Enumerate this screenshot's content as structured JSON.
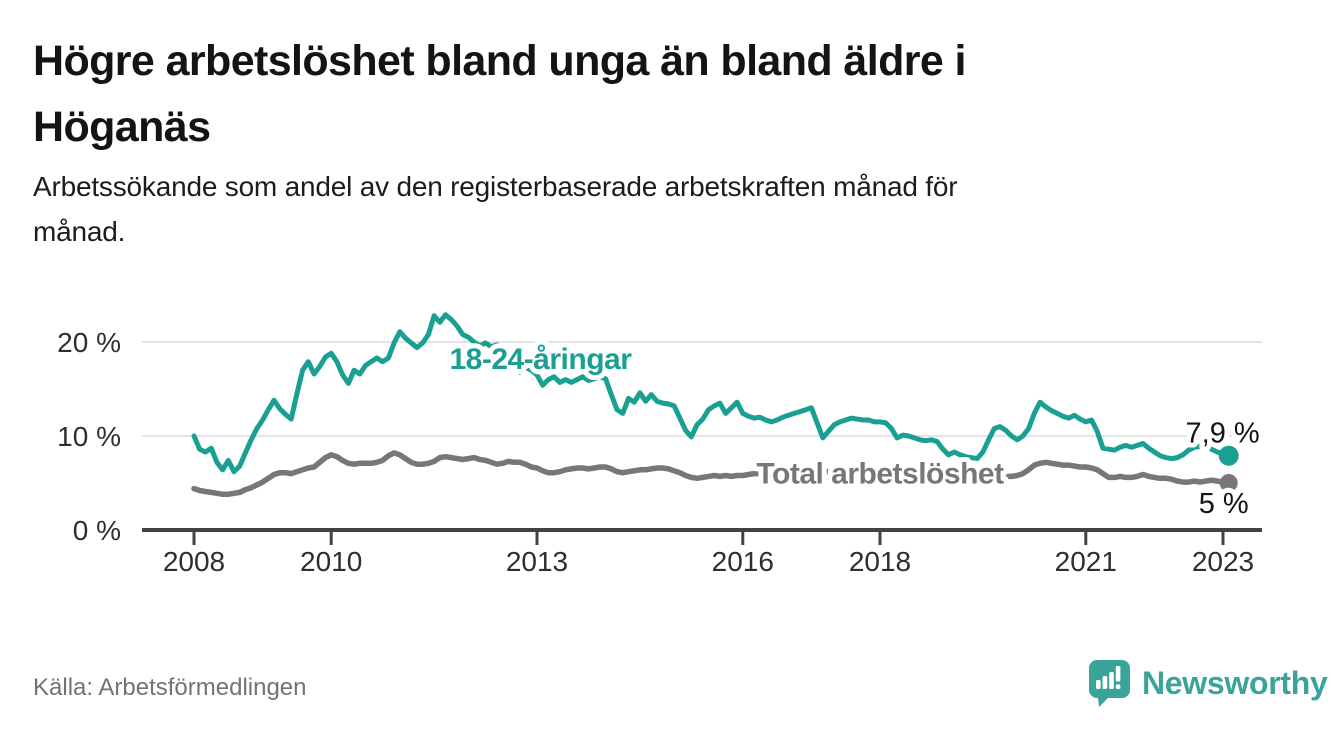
{
  "header": {
    "title": "Högre arbetslöshet bland unga än bland äldre i Höganäs",
    "title_lines": [
      "Högre arbetslöshet bland unga än bland äldre i",
      "Höganäs"
    ],
    "subtitle": "Arbetssökande som andel av den registerbaserade arbetskraften månad för månad.",
    "subtitle_lines": [
      "Arbetssökande som andel av den registerbaserade arbetskraften månad för",
      "månad."
    ]
  },
  "footer": {
    "source": "Källa: Arbetsförmedlingen",
    "brand": "Newsworthy"
  },
  "colors": {
    "youth_line": "#1aa093",
    "total_line": "#77777b",
    "axis": "#424242",
    "gridline": "#e4e4e4",
    "brand_teal": "#3aa49b"
  },
  "chart_data": {
    "type": "line",
    "title": "Högre arbetslöshet bland unga än bland äldre i Höganäs",
    "subtitle": "Arbetssökande som andel av den registerbaserade arbetskraften månad för månad.",
    "unit": "%",
    "frequency": "monthly",
    "start": "2008-01",
    "end": "2023-02",
    "grid": true,
    "ylim": [
      0,
      24.5
    ],
    "y_ticks": [
      {
        "value": 0,
        "label": "0 %"
      },
      {
        "value": 10,
        "label": "10 %"
      },
      {
        "value": 20,
        "label": "20 %"
      }
    ],
    "x_ticks": [
      {
        "year": 2008,
        "label": "2008"
      },
      {
        "year": 2010,
        "label": "2010"
      },
      {
        "year": 2013,
        "label": "2013"
      },
      {
        "year": 2016,
        "label": "2016"
      },
      {
        "year": 2018,
        "label": "2018"
      },
      {
        "year": 2021,
        "label": "2021"
      },
      {
        "year": 2023,
        "label": "2023"
      }
    ],
    "series": [
      {
        "name": "Total arbetslöshet",
        "color": "#77777b",
        "line_width": 5.5,
        "end_label": "5 %",
        "end_value": 5.0,
        "label_anchor": {
          "year": 2018.0,
          "value": 6.1
        },
        "values": [
          4.4,
          4.2,
          4.1,
          4.0,
          3.9,
          3.8,
          3.8,
          3.9,
          4.0,
          4.3,
          4.5,
          4.8,
          5.1,
          5.5,
          5.9,
          6.1,
          6.1,
          6.0,
          6.2,
          6.4,
          6.6,
          6.7,
          7.2,
          7.7,
          8.0,
          7.8,
          7.4,
          7.1,
          7.0,
          7.1,
          7.1,
          7.1,
          7.2,
          7.4,
          7.9,
          8.2,
          8.0,
          7.6,
          7.2,
          7.0,
          7.0,
          7.1,
          7.3,
          7.7,
          7.8,
          7.7,
          7.6,
          7.5,
          7.6,
          7.7,
          7.5,
          7.4,
          7.2,
          7.0,
          7.1,
          7.3,
          7.2,
          7.2,
          7.0,
          6.7,
          6.6,
          6.3,
          6.1,
          6.1,
          6.2,
          6.4,
          6.5,
          6.6,
          6.6,
          6.5,
          6.6,
          6.7,
          6.7,
          6.5,
          6.2,
          6.1,
          6.2,
          6.3,
          6.4,
          6.4,
          6.5,
          6.6,
          6.6,
          6.5,
          6.3,
          6.1,
          5.8,
          5.6,
          5.5,
          5.6,
          5.7,
          5.8,
          5.7,
          5.8,
          5.7,
          5.8,
          5.8,
          5.9,
          6.0,
          6.0,
          6.1,
          6.0,
          6.0,
          6.1,
          6.0,
          6.1,
          6.0,
          6.1,
          6.2,
          6.2,
          6.3,
          6.2,
          6.3,
          6.2,
          6.2,
          6.1,
          6.2,
          6.1,
          6.1,
          6.0,
          6.1,
          6.0,
          6.0,
          5.9,
          6.0,
          5.9,
          5.9,
          6.0,
          5.9,
          5.9,
          5.8,
          5.9,
          5.9,
          5.8,
          5.8,
          5.7,
          5.7,
          5.6,
          5.6,
          5.7,
          5.7,
          5.6,
          5.7,
          5.7,
          5.8,
          6.0,
          6.4,
          6.9,
          7.1,
          7.2,
          7.1,
          7.0,
          6.9,
          6.9,
          6.8,
          6.7,
          6.7,
          6.6,
          6.4,
          6.0,
          5.6,
          5.6,
          5.7,
          5.6,
          5.6,
          5.7,
          5.9,
          5.7,
          5.6,
          5.5,
          5.5,
          5.4,
          5.2,
          5.1,
          5.1,
          5.2,
          5.1,
          5.2,
          5.3,
          5.2,
          5.1,
          5.0
        ]
      },
      {
        "name": "18-24-åringar",
        "color": "#1aa093",
        "line_width": 5,
        "end_label": "7,9 %",
        "end_value": 7.9,
        "label_anchor": {
          "year": 2013.05,
          "value": 18.3
        },
        "values": [
          10.0,
          8.6,
          8.3,
          8.7,
          7.2,
          6.4,
          7.4,
          6.2,
          6.8,
          8.2,
          9.6,
          10.8,
          11.7,
          12.8,
          13.8,
          12.9,
          12.3,
          11.8,
          14.5,
          17.0,
          17.9,
          16.6,
          17.4,
          18.4,
          18.8,
          17.9,
          16.5,
          15.6,
          17.0,
          16.6,
          17.5,
          17.9,
          18.3,
          17.9,
          18.3,
          19.9,
          21.1,
          20.4,
          19.9,
          19.4,
          19.9,
          20.8,
          22.8,
          22.1,
          22.9,
          22.4,
          21.7,
          20.8,
          20.5,
          20.0,
          19.6,
          19.9,
          19.5,
          19.7,
          19.3,
          18.6,
          17.6,
          16.8,
          17.3,
          17.0,
          16.5,
          15.4,
          16.0,
          16.3,
          15.7,
          16.0,
          15.7,
          16.0,
          16.3,
          15.9,
          16.1,
          16.3,
          16.1,
          14.4,
          12.8,
          12.4,
          14.0,
          13.6,
          14.6,
          13.7,
          14.4,
          13.7,
          13.5,
          13.4,
          13.2,
          11.9,
          10.6,
          9.9,
          11.2,
          11.8,
          12.8,
          13.2,
          13.5,
          12.4,
          13.0,
          13.6,
          12.4,
          12.1,
          11.9,
          12.0,
          11.7,
          11.5,
          11.7,
          12.0,
          12.2,
          12.4,
          12.6,
          12.8,
          13.0,
          11.4,
          9.8,
          10.5,
          11.2,
          11.5,
          11.7,
          11.9,
          11.8,
          11.7,
          11.7,
          11.5,
          11.5,
          11.4,
          10.8,
          9.8,
          10.1,
          10.0,
          9.8,
          9.6,
          9.5,
          9.6,
          9.4,
          8.6,
          8.0,
          8.3,
          8.0,
          7.8,
          7.7,
          7.6,
          8.3,
          9.6,
          10.8,
          11.0,
          10.6,
          10.0,
          9.6,
          10.0,
          10.8,
          12.4,
          13.6,
          13.1,
          12.7,
          12.4,
          12.1,
          11.9,
          12.2,
          11.8,
          11.5,
          11.7,
          10.5,
          8.7,
          8.6,
          8.5,
          8.8,
          9.0,
          8.8,
          9.0,
          9.2,
          8.7,
          8.3,
          7.9,
          7.7,
          7.6,
          7.7,
          8.0,
          8.5,
          8.8,
          8.9,
          9.0,
          8.6,
          8.3,
          8.1,
          7.9
        ]
      }
    ]
  }
}
